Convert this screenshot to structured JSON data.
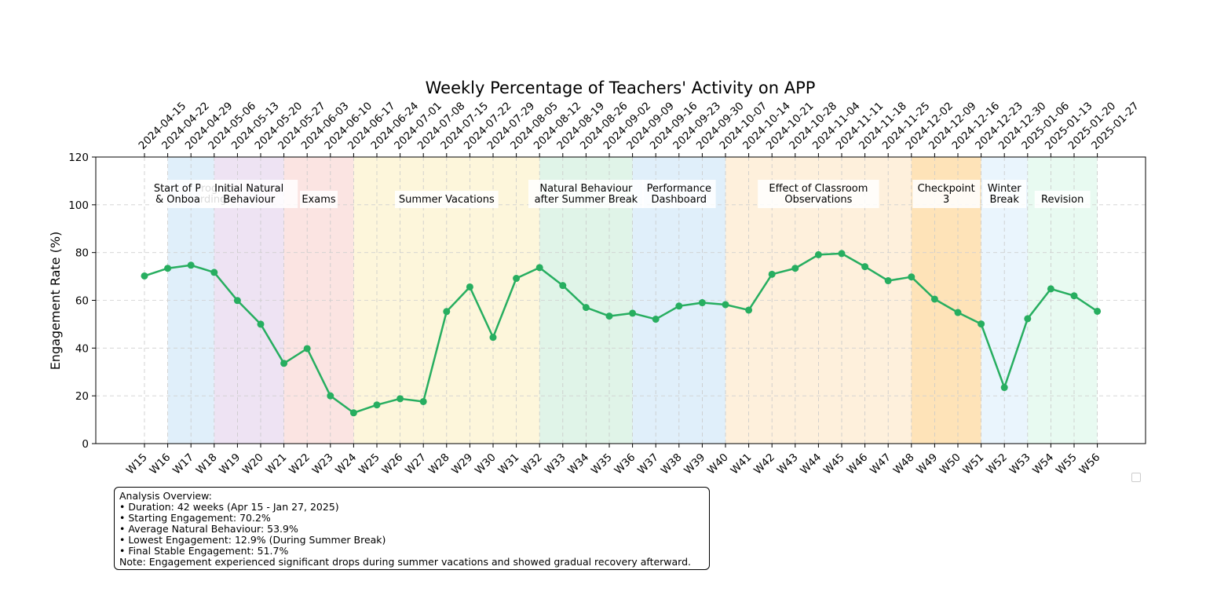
{
  "chart_data": {
    "type": "line",
    "title": "Weekly Percentage of Teachers' Activity on APP",
    "ylabel": "Engagement Rate (%)",
    "xlabel": "",
    "ylim": [
      0,
      120
    ],
    "yticks": [
      0,
      20,
      40,
      60,
      80,
      100,
      120
    ],
    "grid": true,
    "line_color": "#27ae60",
    "categories": [
      "W15",
      "W16",
      "W17",
      "W18",
      "W19",
      "W20",
      "W21",
      "W22",
      "W23",
      "W24",
      "W25",
      "W26",
      "W27",
      "W28",
      "W29",
      "W30",
      "W31",
      "W32",
      "W33",
      "W34",
      "W35",
      "W36",
      "W37",
      "W38",
      "W39",
      "W40",
      "W41",
      "W42",
      "W43",
      "W44",
      "W45",
      "W46",
      "W47",
      "W48",
      "W49",
      "W50",
      "W51",
      "W52",
      "W53",
      "W54",
      "W55",
      "W56"
    ],
    "top_axis_dates": [
      "2024-04-15",
      "2024-04-22",
      "2024-04-29",
      "2024-05-06",
      "2024-05-13",
      "2024-05-20",
      "2024-05-27",
      "2024-06-03",
      "2024-06-10",
      "2024-06-17",
      "2024-06-24",
      "2024-07-01",
      "2024-07-08",
      "2024-07-15",
      "2024-07-22",
      "2024-07-29",
      "2024-08-05",
      "2024-08-12",
      "2024-08-19",
      "2024-08-26",
      "2024-09-02",
      "2024-09-09",
      "2024-09-16",
      "2024-09-23",
      "2024-09-30",
      "2024-10-07",
      "2024-10-14",
      "2024-10-21",
      "2024-10-28",
      "2024-11-04",
      "2024-11-11",
      "2024-11-18",
      "2024-11-25",
      "2024-12-02",
      "2024-12-09",
      "2024-12-16",
      "2024-12-23",
      "2024-12-30",
      "2025-01-06",
      "2025-01-13",
      "2025-01-20",
      "2025-01-27"
    ],
    "series": [
      {
        "values": [
          70.2,
          73.4,
          74.7,
          71.7,
          59.9,
          50.0,
          33.6,
          39.8,
          20.0,
          12.9,
          16.2,
          18.8,
          17.6,
          55.3,
          65.6,
          44.5,
          69.2,
          73.7,
          66.2,
          57.0,
          53.4,
          54.6,
          52.1,
          57.6,
          59.0,
          58.2,
          55.9,
          70.9,
          73.4,
          79.1,
          79.6,
          74.1,
          68.2,
          69.8,
          60.5,
          54.9,
          50.1,
          23.5,
          52.3,
          64.8,
          61.9,
          55.4
        ]
      }
    ],
    "phases": [
      {
        "label": "Start of Progra\n& Onboarding",
        "start": "W16",
        "end": "W18",
        "color": "#d6eaf8"
      },
      {
        "label": "Initial Natural\nBehaviour",
        "start": "W18",
        "end": "W21",
        "color": "#e8daef"
      },
      {
        "label": "Exams",
        "start": "W21",
        "end": "W24",
        "color": "#fadbd8"
      },
      {
        "label": "Summer Vacations",
        "start": "W24",
        "end": "W32",
        "color": "#fcf3cf"
      },
      {
        "label": "Natural Behaviour\nafter Summer Break",
        "start": "W32",
        "end": "W36",
        "color": "#d5f0e0"
      },
      {
        "label": "Performance\nDashboard",
        "start": "W36",
        "end": "W40",
        "color": "#d6eaf8"
      },
      {
        "label": "Effect of Classroom\nObservations",
        "start": "W40",
        "end": "W48",
        "color": "#fdebd0"
      },
      {
        "label": "Checkpoint\n3",
        "start": "W48",
        "end": "W51",
        "color": "#fdd9a0"
      },
      {
        "label": "Winter\nBreak",
        "start": "W51",
        "end": "W53",
        "color": "#e3f1fc"
      },
      {
        "label": "Revision",
        "start": "W53",
        "end": "W56",
        "color": "#e0f8ec"
      }
    ]
  },
  "summary": {
    "heading": "Analysis Overview:",
    "lines": [
      "• Duration: 42 weeks (Apr 15 - Jan 27, 2025)",
      "• Starting Engagement: 70.2%",
      "• Average Natural Behaviour: 53.9%",
      "• Lowest Engagement: 12.9% (During Summer Break)",
      "• Final Stable Engagement: 51.7%"
    ],
    "note": "Note: Engagement experienced significant drops during summer vacations and showed gradual recovery afterward."
  }
}
